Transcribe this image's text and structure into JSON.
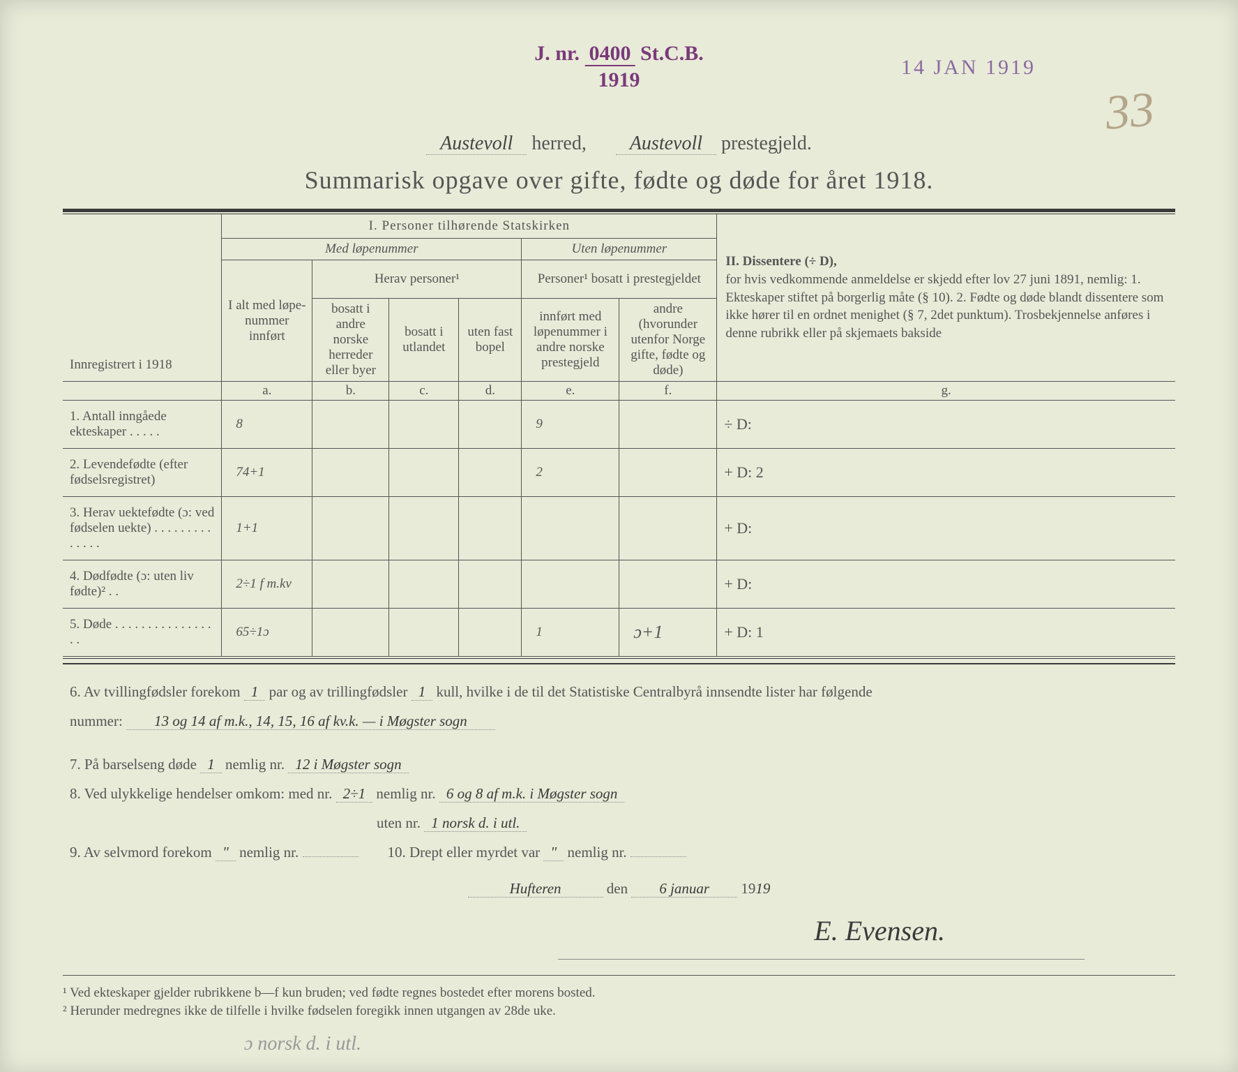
{
  "stamp": {
    "jnr_label": "J. nr.",
    "jnr_number": "0400",
    "jnr_suffix": "St.C.B.",
    "jnr_year": "1919",
    "date": "14 JAN 1919"
  },
  "page_number": "33",
  "header": {
    "herred_hw": "Austevoll",
    "herred_label": "herred,",
    "prestegjeld_hw": "Austevoll",
    "prestegjeld_label": "prestegjeld."
  },
  "title": "Summarisk opgave over gifte, fødte og døde for året 1918.",
  "table": {
    "section1": "I.  Personer tilhørende Statskirken",
    "section2": "II.  Dissentere (÷ D),",
    "med_lope": "Med løpenummer",
    "uten_lope": "Uten løpenummer",
    "innreg": "Innregistrert i 1918",
    "ialt": "I alt med løpe­nummer innført",
    "herav": "Herav personer¹",
    "col_b": "bosatt i andre norske herreder eller byer",
    "col_c": "bosatt i utlandet",
    "col_d": "uten fast bopel",
    "personer_uten": "Personer¹ bosatt i prestegjeldet",
    "col_e": "innført med løpenummer i andre norske prestegjeld",
    "col_f": "andre (hvorunder utenfor Norge gifte, fødte og døde)",
    "diss_text": "for hvis vedkommende anmeldelse er skjedd efter lov 27 juni 1891, nemlig: 1. Ekteskaper stiftet på borgerlig måte (§ 10). 2. Fødte og døde blandt dissentere som ikke hører til en ordnet menighet (§ 7, 2det punktum). Trosbekjennelse anføres i denne rubrikk eller på skjemaets bakside",
    "letters": {
      "a": "a.",
      "b": "b.",
      "c": "c.",
      "d": "d.",
      "e": "e.",
      "f": "f.",
      "g": "g."
    },
    "rows": [
      {
        "label": "1. Antall inngåede ekteskaper . . . . .",
        "a": "8",
        "b": "",
        "c": "",
        "d": "",
        "e": "9",
        "f": "",
        "g": "÷ D:"
      },
      {
        "label": "2. Levendefødte (efter fødselsregistret)",
        "a": "74+1",
        "b": "",
        "c": "",
        "d": "",
        "e": "2",
        "f": "",
        "g": "+ D: 2"
      },
      {
        "label": "3. Herav uektefødte (ɔ: ved fødse­len uekte) . . . . . . . . . . . . . .",
        "a": "1+1",
        "b": "",
        "c": "",
        "d": "",
        "e": "",
        "f": "",
        "g": "+ D:"
      },
      {
        "label": "4. Dødfødte (ɔ: uten liv fødte)² . .",
        "a": "2÷1 f m.kv",
        "b": "",
        "c": "",
        "d": "",
        "e": "",
        "f": "",
        "g": "+ D:"
      },
      {
        "label": "5. Døde . . . . . . . . . . . . . . . . .",
        "a": "65÷1ɔ",
        "b": "",
        "c": "",
        "d": "",
        "e": "1",
        "f": "ɔ+1",
        "g": "+ D: 1"
      }
    ]
  },
  "lower": {
    "l6_a": "6. Av tvillingfødsler forekom",
    "l6_par": "1",
    "l6_b": "par og av trillingfødsler",
    "l6_kull": "1",
    "l6_c": "kull, hvilke i de til det Statistiske Centralbyrå innsendte lister har følgende",
    "l6_d": "nummer:",
    "l6_hw": "13 og 14 af m.k., 14, 15, 16 af kv.k. — i Møgster sogn",
    "l7_a": "7. På barselseng døde",
    "l7_count": "1",
    "l7_b": "nemlig nr.",
    "l7_hw": "12 i Møgster sogn",
    "l8_a": "8. Ved ulykkelige hendelser omkom:  med nr.",
    "l8_med": "2÷1",
    "l8_b": "nemlig nr.",
    "l8_hw1": "6 og 8 af m.k. i Møgster sogn",
    "l8_c": "uten nr.",
    "l8_hw2": "1 norsk d. i utl.",
    "l9_a": "9. Av selvmord forekom",
    "l9_v": "\"",
    "l9_b": "nemlig nr.",
    "l10_a": "10. Drept eller myrdet var",
    "l10_v": "\"",
    "l10_b": "nemlig nr.",
    "place": "Hufteren",
    "den": "den",
    "date_hw": "6 januar",
    "year_prefix": "19",
    "year_hw": "19",
    "signature": "E. Evensen."
  },
  "footnotes": {
    "f1": "¹  Ved ekteskaper gjelder rubrikkene b—f kun bruden; ved fødte regnes bostedet efter morens bosted.",
    "f2": "²  Herunder medregnes ikke de tilfelle i hvilke fødselen foregikk innen utgangen av 28de uke."
  },
  "pencil_note": "ɔ norsk d. i utl."
}
